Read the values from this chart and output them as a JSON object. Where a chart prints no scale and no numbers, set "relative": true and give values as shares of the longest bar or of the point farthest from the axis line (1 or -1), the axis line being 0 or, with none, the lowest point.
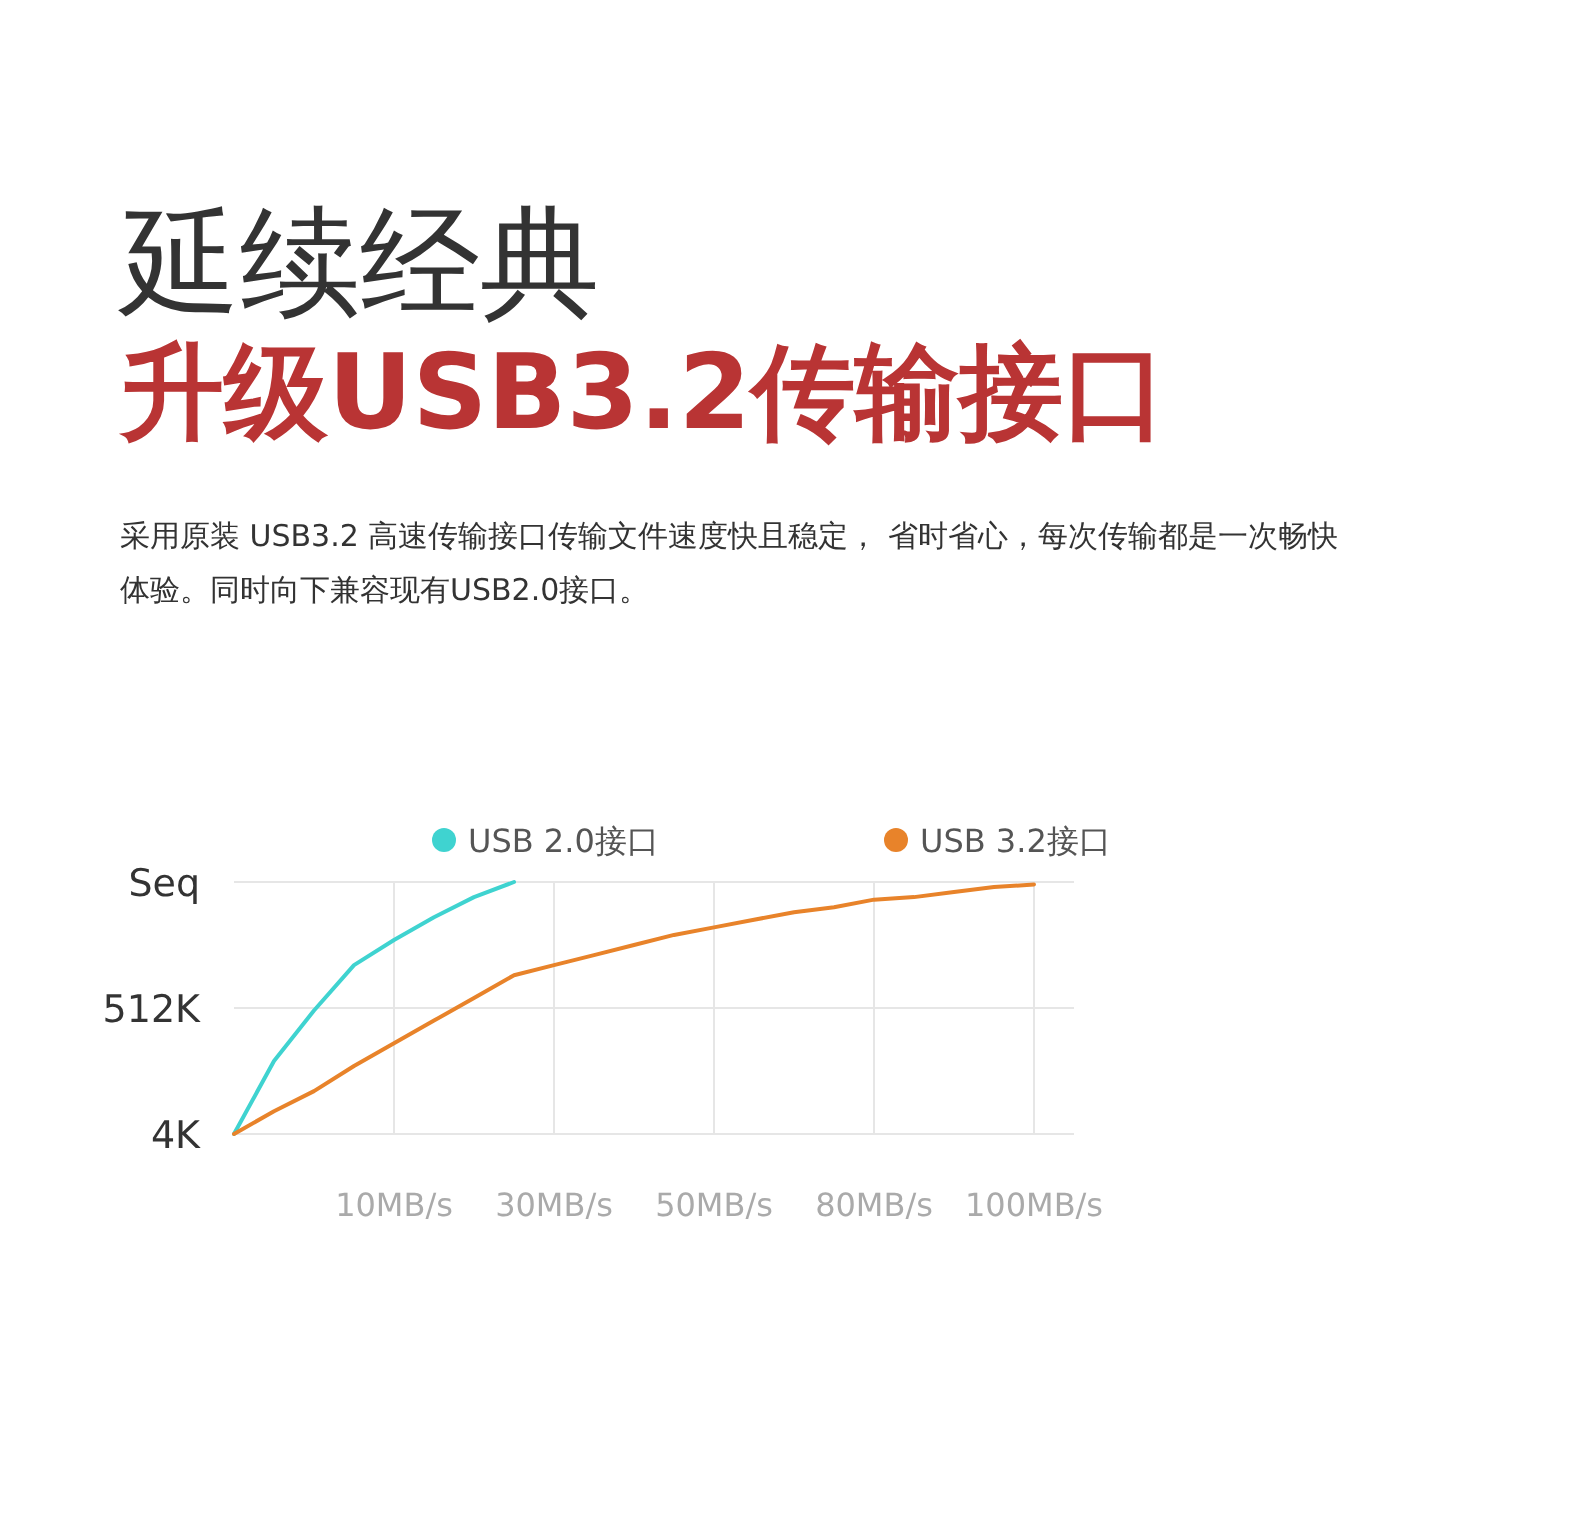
{
  "chart_data": {
    "type": "line",
    "title": "延续经典",
    "subtitle": "升级USB3.2传输接口",
    "annotations": [
      "采用原装 USB3.2 高速传输接口传输文件速度快且稳定， 省时省心，每次传输都是一次畅快体验。同时向下兼容现有USB2.0接口。",
      "4K",
      "512K",
      "Seq"
    ],
    "relative": true,
    "categories": [
      null,
      null,
      null,
      null,
      "10MB/s",
      null,
      null,
      null,
      "30MB/s",
      null,
      null,
      null,
      "50MB/s",
      null,
      null,
      null,
      "80MB/s",
      null,
      null,
      null,
      "100MB/s"
    ],
    "series": [
      {
        "name": "USB 2.0接口",
        "color": "#3fd3d0",
        "values": [
          0,
          0.29,
          0.49,
          0.67,
          0.77,
          0.86,
          0.94,
          1.0,
          null,
          null,
          null,
          null,
          null,
          null,
          null,
          null,
          null,
          null,
          null,
          null,
          null
        ]
      },
      {
        "name": "USB 3.2接口",
        "color": "#e8832a",
        "values": [
          0,
          0.09,
          0.17,
          0.27,
          0.36,
          0.45,
          0.54,
          0.63,
          0.67,
          0.71,
          0.75,
          0.79,
          0.82,
          0.85,
          0.88,
          0.9,
          0.93,
          0.94,
          0.96,
          0.98,
          0.99
        ]
      }
    ],
    "grid": true,
    "legend": "top"
  }
}
